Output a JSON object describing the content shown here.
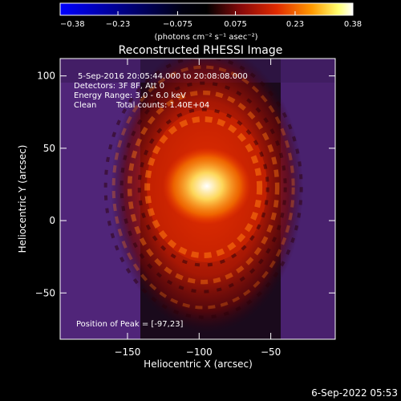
{
  "chart_data": {
    "type": "heatmap",
    "title": "Reconstructed RHESSI Image",
    "xlabel": "Heliocentric X (arcsec)",
    "ylabel": "Heliocentric Y (arcsec)",
    "xlim": [
      -197,
      -5
    ],
    "ylim": [
      -82,
      112
    ],
    "x_ticks": [
      -150,
      -100,
      -50
    ],
    "x_tick_labels": [
      "−150",
      "−100",
      "−50"
    ],
    "y_ticks": [
      -50,
      0,
      50,
      100
    ],
    "y_tick_labels": [
      "−50",
      "0",
      "50",
      "100"
    ],
    "peak": [
      -97,
      23
    ],
    "colorbar": {
      "min": -0.38,
      "max": 0.38,
      "ticks": [
        -0.38,
        -0.23,
        -0.075,
        0.075,
        0.23,
        0.38
      ],
      "tick_labels": [
        "−0.38",
        "−0.23",
        "−0.075",
        "0.075",
        "0.23",
        "0.38"
      ],
      "unit_label": "(photons cm⁻² s⁻¹ asec⁻²)",
      "colors": [
        "#0000ff",
        "#000000",
        "#7a0a0a",
        "#e02000",
        "#ff9900",
        "#ffff66",
        "#ffffff"
      ]
    },
    "annotations": {
      "time": "5-Sep-2016 20:05:44.000 to 20:08:08.000",
      "detectors": "Detectors: 3F 8F, Att 0",
      "energy": "Energy Range: 3.0 - 6.0 keV",
      "method": "Clean",
      "counts": "Total counts: 1.40E+04",
      "peak_text": "Position of Peak = [-97,23]"
    }
  },
  "footer": {
    "date": "6-Sep-2022 05:53"
  }
}
